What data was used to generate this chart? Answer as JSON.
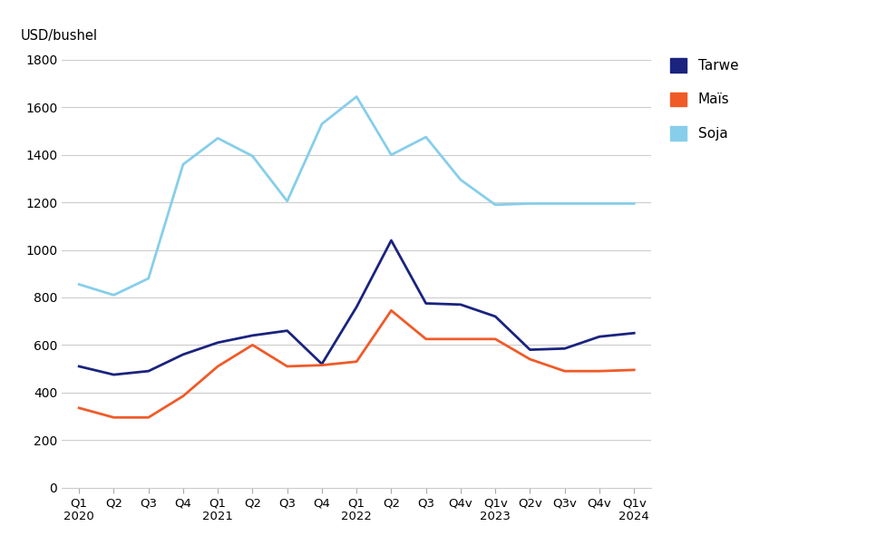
{
  "x_labels": [
    "Q1\n2020",
    "Q2",
    "Q3",
    "Q4",
    "Q1\n2021",
    "Q2",
    "Q3",
    "Q4",
    "Q1\n2022",
    "Q2",
    "Q3",
    "Q4v",
    "Q1v\n2023",
    "Q2v",
    "Q3v",
    "Q4v",
    "Q1v\n2024"
  ],
  "tarwe": [
    510,
    475,
    490,
    560,
    610,
    640,
    660,
    520,
    760,
    1040,
    775,
    770,
    720,
    580,
    585,
    635,
    650
  ],
  "mais": [
    335,
    295,
    295,
    385,
    510,
    600,
    510,
    515,
    530,
    745,
    625,
    625,
    625,
    540,
    490,
    490,
    495
  ],
  "soja": [
    855,
    810,
    880,
    1360,
    1470,
    1395,
    1205,
    1530,
    1645,
    1400,
    1475,
    1295,
    1190,
    1195,
    1195,
    1195,
    1195
  ],
  "tarwe_color": "#1a237e",
  "mais_color": "#f05a28",
  "soja_color": "#87ceeb",
  "top_label": "USD/bushel",
  "ylim": [
    0,
    1800
  ],
  "yticks": [
    0,
    200,
    400,
    600,
    800,
    1000,
    1200,
    1400,
    1600,
    1800
  ],
  "legend_labels": [
    "Tarwe",
    "Maïs",
    "Soja"
  ],
  "bg_color": "#ffffff",
  "grid_color": "#cccccc",
  "line_width": 2.0
}
